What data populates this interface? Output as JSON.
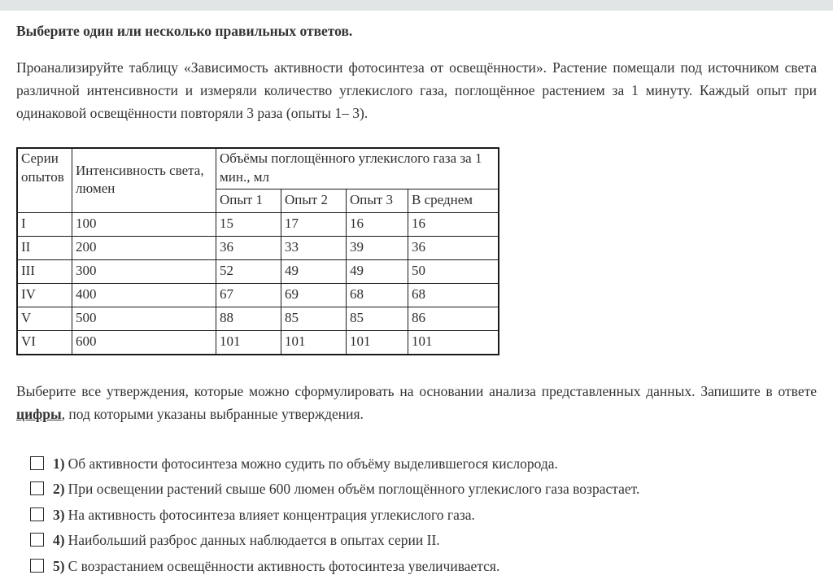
{
  "colors": {
    "top_bar": "#e1e5e5",
    "text": "#333333",
    "table_border": "#1a1a1a"
  },
  "header": {
    "instruction": "Выберите один или несколько правильных ответов."
  },
  "intro_paragraph": "Проанализируйте таблицу «Зависимость активности фотосинтеза от освещённости». Растение помещали под источником света различной интенсивности и измеряли количество углекислого газа, поглощённое растением за 1 минуту. Каждый опыт при одинаковой освещённости повторяли 3 раза (опыты 1– 3).",
  "table": {
    "headers": {
      "series": "Серии опытов",
      "intensity": "Интенсивность света, люмен",
      "group": "Объёмы поглощённого углекислого газа за 1 мин., мл",
      "trial1": "Опыт 1",
      "trial2": "Опыт 2",
      "trial3": "Опыт 3",
      "average": "В среднем"
    },
    "rows": [
      {
        "series": "I",
        "intensity": "100",
        "trial1": "15",
        "trial2": "17",
        "trial3": "16",
        "average": "16"
      },
      {
        "series": "II",
        "intensity": "200",
        "trial1": "36",
        "trial2": "33",
        "trial3": "39",
        "average": "36"
      },
      {
        "series": "III",
        "intensity": "300",
        "trial1": "52",
        "trial2": "49",
        "trial3": "49",
        "average": "50"
      },
      {
        "series": "IV",
        "intensity": "400",
        "trial1": "67",
        "trial2": "69",
        "trial3": "68",
        "average": "68"
      },
      {
        "series": "V",
        "intensity": "500",
        "trial1": "88",
        "trial2": "85",
        "trial3": "85",
        "average": "86"
      },
      {
        "series": "VI",
        "intensity": "600",
        "trial1": "101",
        "trial2": "101",
        "trial3": "101",
        "average": "101"
      }
    ]
  },
  "task": {
    "text_before": "Выберите все утверждения, которые можно сформулировать на основании анализа представленных данных. Запишите в ответе",
    "emphasized_word": "цифры",
    "text_after": ", под которыми указаны выбранные утверждения."
  },
  "options": [
    {
      "number": "1)",
      "text": "Об активности фотосинтеза можно судить по объёму выделившегося кислорода.",
      "checked": false
    },
    {
      "number": "2)",
      "text": "При освещении растений свыше 600 люмен объём поглощённого углекислого газа возрастает.",
      "checked": false
    },
    {
      "number": "3)",
      "text": "На активность фотосинтеза влияет концентрация углекислого газа.",
      "checked": false
    },
    {
      "number": "4)",
      "text": "Наибольший разброс данных наблюдается в опытах серии II.",
      "checked": false
    },
    {
      "number": "5)",
      "text": "С возрастанием освещённости активность фотосинтеза увеличивается.",
      "checked": false
    }
  ]
}
